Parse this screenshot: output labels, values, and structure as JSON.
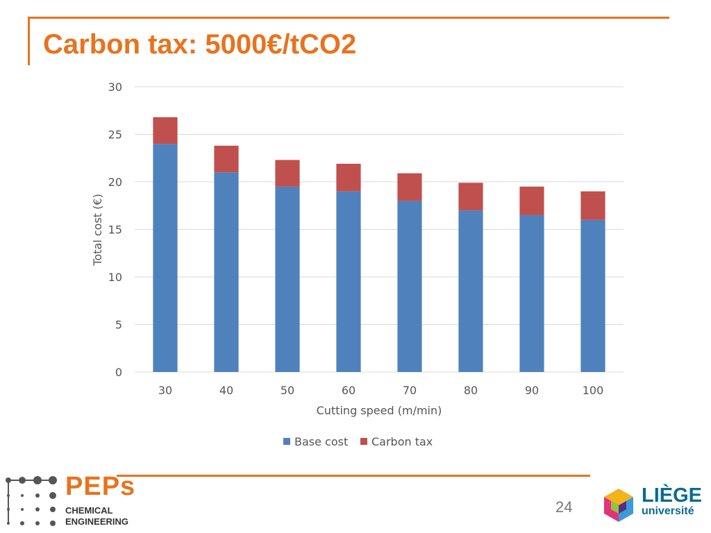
{
  "slide": {
    "title": "Carbon tax: 5000€/tCO2",
    "page_number": "24"
  },
  "logos": {
    "peps_wordmark": "PEPs",
    "peps_sub_line1": "CHEMICAL",
    "peps_sub_line2": "ENGINEERING",
    "liege_word": "LIÈGE",
    "liege_sub": "université"
  },
  "colors": {
    "accent": "#e8731e",
    "base_cost": "#4f81bd",
    "carbon_tax": "#c0504d",
    "gridline": "#d9d9d9",
    "axis_text": "#555555"
  },
  "chart_data": {
    "type": "bar",
    "stacked": true,
    "categories": [
      "30",
      "40",
      "50",
      "60",
      "70",
      "80",
      "90",
      "100"
    ],
    "series": [
      {
        "name": "Base cost",
        "values": [
          24,
          21,
          19.5,
          19,
          18,
          17,
          16.5,
          16
        ]
      },
      {
        "name": "Carbon tax",
        "values": [
          2.8,
          2.8,
          2.8,
          2.9,
          2.9,
          2.9,
          3.0,
          3.0
        ]
      }
    ],
    "title": "",
    "xlabel": "Cutting speed (m/min)",
    "ylabel": "Total cost (€)",
    "ylim": [
      0,
      30
    ],
    "yticks": [
      "0",
      "5",
      "10",
      "15",
      "20",
      "25",
      "30"
    ],
    "grid": true,
    "legend": "bottom"
  }
}
